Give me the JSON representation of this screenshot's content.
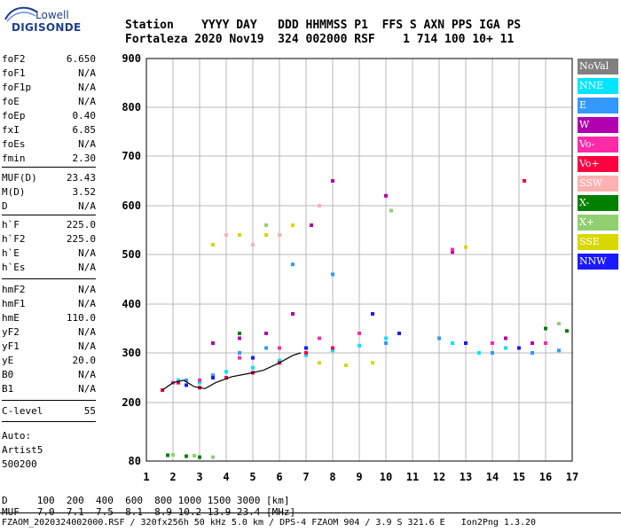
{
  "logo": {
    "brand": "Lowell",
    "name": "DIGISONDE"
  },
  "header": {
    "line1": "Station    YYYY DAY   DDD HHMMSS P1  FFS S AXN PPS IGA PS",
    "line2": "Fortaleza 2020 Nov19  324 002000 RSF    1 714 100 10+ 11"
  },
  "params": [
    {
      "name": "foF2",
      "value": "6.650"
    },
    {
      "name": "foF1",
      "value": "N/A"
    },
    {
      "name": "foF1p",
      "value": "N/A"
    },
    {
      "name": "foE",
      "value": "N/A"
    },
    {
      "name": "foEp",
      "value": "0.40"
    },
    {
      "name": "fxI",
      "value": "6.85"
    },
    {
      "name": "foEs",
      "value": "N/A"
    },
    {
      "name": "fmin",
      "value": "2.30"
    },
    {
      "name": "MUF(D)",
      "value": "23.43"
    },
    {
      "name": "M(D)",
      "value": "3.52"
    },
    {
      "name": "D",
      "value": "N/A"
    },
    {
      "name": "h`F",
      "value": "225.0"
    },
    {
      "name": "h`F2",
      "value": "225.0"
    },
    {
      "name": "h`E",
      "value": "N/A"
    },
    {
      "name": "h`Es",
      "value": "N/A"
    },
    {
      "name": "hmF2",
      "value": "N/A"
    },
    {
      "name": "hmF1",
      "value": "N/A"
    },
    {
      "name": "hmE",
      "value": "110.0"
    },
    {
      "name": "yF2",
      "value": "N/A"
    },
    {
      "name": "yF1",
      "value": "N/A"
    },
    {
      "name": "yE",
      "value": "20.0"
    },
    {
      "name": "B0",
      "value": "N/A"
    },
    {
      "name": "B1",
      "value": "N/A"
    },
    {
      "name": "C-level",
      "value": "55"
    }
  ],
  "auto": {
    "line1": "Auto:",
    "line2": "Artist5",
    "line3": "500200"
  },
  "legend": [
    {
      "label": "NoVal",
      "color": "#808080"
    },
    {
      "label": "NNE",
      "color": "#00e5ff"
    },
    {
      "label": "E",
      "color": "#3399ff"
    },
    {
      "label": "W",
      "color": "#b000b0"
    },
    {
      "label": "Vo-",
      "color": "#ff2aa8"
    },
    {
      "label": "Vo+",
      "color": "#ff0040"
    },
    {
      "label": "SSW",
      "color": "#ffb0b0"
    },
    {
      "label": "X-",
      "color": "#008000"
    },
    {
      "label": "X+",
      "color": "#90d070"
    },
    {
      "label": "SSE",
      "color": "#d8d800"
    },
    {
      "label": "NNW",
      "color": "#1a1aff"
    }
  ],
  "footer": {
    "d_line": "D     100  200  400  600  800 1000 1500 3000 [km]",
    "muf_line": "MUF   7.0  7.1  7.5  8.1  8.9 10.2 13.9 23.4 [MHz]",
    "file_line": "FZAOM_2020324002000.RSF / 320fx256h 50 kHz 5.0 km / DPS-4 FZAOM 904 / 3.9 S 321.6 E   Ion2Png 1.3.20"
  },
  "chart_data": {
    "type": "scatter",
    "x_ticks": [
      "1",
      "2",
      "3",
      "4",
      "5",
      "6",
      "7",
      "8",
      "9",
      "10",
      "11",
      "12",
      "13",
      "14",
      "15",
      "16",
      "17"
    ],
    "y_ticks": [
      "80",
      "200",
      "300",
      "400",
      "500",
      "600",
      "700",
      "800",
      "900"
    ],
    "xlim": [
      1,
      17
    ],
    "ylim": [
      80,
      900
    ],
    "y_scale": "reciprocal-like (ionogram virtual height)",
    "grid": true,
    "legend_position": "right",
    "series": [
      {
        "name": "NNE",
        "color": "#00e5ff",
        "points": [
          [
            2.2,
            245
          ],
          [
            3.0,
            240
          ],
          [
            4.0,
            262
          ],
          [
            5.0,
            270
          ],
          [
            6.0,
            285
          ],
          [
            7.0,
            295
          ],
          [
            8.0,
            305
          ],
          [
            9.0,
            315
          ],
          [
            10.0,
            330
          ],
          [
            12.5,
            320
          ],
          [
            13.5,
            300
          ],
          [
            14.5,
            310
          ]
        ]
      },
      {
        "name": "E",
        "color": "#3399ff",
        "points": [
          [
            2.5,
            245
          ],
          [
            3.5,
            255
          ],
          [
            4.5,
            300
          ],
          [
            5.5,
            310
          ],
          [
            6.5,
            480
          ],
          [
            8.0,
            460
          ],
          [
            10.0,
            320
          ],
          [
            12.0,
            330
          ],
          [
            13.0,
            320
          ],
          [
            14.0,
            300
          ],
          [
            15.5,
            300
          ],
          [
            16.5,
            305
          ]
        ]
      },
      {
        "name": "W",
        "color": "#b000b0",
        "points": [
          [
            3.5,
            320
          ],
          [
            4.5,
            330
          ],
          [
            5.5,
            340
          ],
          [
            6.5,
            380
          ],
          [
            7.2,
            560
          ],
          [
            8.0,
            650
          ],
          [
            10.0,
            620
          ],
          [
            12.5,
            505
          ],
          [
            14.5,
            330
          ],
          [
            15.5,
            320
          ]
        ]
      },
      {
        "name": "Vo-",
        "color": "#ff2aa8",
        "points": [
          [
            2.0,
            240
          ],
          [
            3.0,
            245
          ],
          [
            4.5,
            290
          ],
          [
            6.0,
            310
          ],
          [
            7.5,
            330
          ],
          [
            9.0,
            340
          ],
          [
            12.5,
            510
          ],
          [
            14.0,
            320
          ],
          [
            16.0,
            320
          ]
        ]
      },
      {
        "name": "Vo+",
        "color": "#ff0040",
        "points": [
          [
            1.6,
            225
          ],
          [
            2.2,
            240
          ],
          [
            3.0,
            230
          ],
          [
            4.0,
            250
          ],
          [
            5.0,
            260
          ],
          [
            6.0,
            280
          ],
          [
            7.0,
            300
          ],
          [
            8.0,
            310
          ],
          [
            15.2,
            650
          ]
        ]
      },
      {
        "name": "SSW",
        "color": "#ffb0b0",
        "points": [
          [
            4.0,
            540
          ],
          [
            5.0,
            520
          ],
          [
            6.0,
            540
          ],
          [
            7.5,
            600
          ]
        ]
      },
      {
        "name": "X-",
        "color": "#008000",
        "points": [
          [
            1.8,
            92
          ],
          [
            2.5,
            90
          ],
          [
            3.0,
            88
          ],
          [
            4.5,
            340
          ],
          [
            16.0,
            350
          ],
          [
            16.8,
            345
          ]
        ]
      },
      {
        "name": "X+",
        "color": "#90d070",
        "points": [
          [
            2.0,
            93
          ],
          [
            2.8,
            91
          ],
          [
            3.5,
            88
          ],
          [
            5.5,
            560
          ],
          [
            10.2,
            590
          ],
          [
            16.5,
            360
          ]
        ]
      },
      {
        "name": "SSE",
        "color": "#d8d800",
        "points": [
          [
            3.5,
            520
          ],
          [
            4.5,
            540
          ],
          [
            5.5,
            540
          ],
          [
            6.5,
            560
          ],
          [
            7.5,
            280
          ],
          [
            8.5,
            275
          ],
          [
            9.5,
            280
          ],
          [
            13.0,
            515
          ]
        ]
      },
      {
        "name": "NNW",
        "color": "#1a1aff",
        "points": [
          [
            2.5,
            235
          ],
          [
            3.5,
            250
          ],
          [
            5.0,
            290
          ],
          [
            7.0,
            310
          ],
          [
            9.5,
            380
          ],
          [
            10.5,
            340
          ],
          [
            13.0,
            320
          ],
          [
            15.0,
            310
          ]
        ]
      }
    ],
    "trace": {
      "color": "#000000",
      "points": [
        [
          1.6,
          225
        ],
        [
          2.0,
          240
        ],
        [
          2.4,
          245
        ],
        [
          2.8,
          232
        ],
        [
          3.2,
          228
        ],
        [
          3.6,
          240
        ],
        [
          4.2,
          252
        ],
        [
          4.8,
          258
        ],
        [
          5.4,
          265
        ],
        [
          6.0,
          280
        ],
        [
          6.5,
          295
        ],
        [
          6.8,
          300
        ]
      ]
    }
  }
}
